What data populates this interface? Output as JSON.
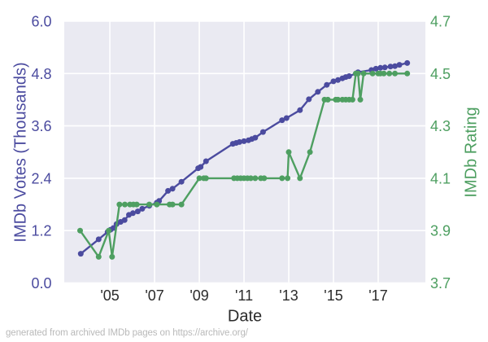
{
  "figure": {
    "bg": "#ffffff",
    "plot_bg": "#eaeaf2",
    "grid_color": "#ffffff",
    "footer": "generated from archived IMDb pages on https://archive.org/",
    "x_tick_color": "#2b2b2b"
  },
  "chart_data": {
    "type": "line",
    "xlabel": "Date",
    "xlim": [
      2002.96,
      2019.11
    ],
    "x_ticks": [
      2005,
      2007,
      2009,
      2011,
      2013,
      2015,
      2017
    ],
    "x_tick_labels": [
      "'05",
      "'07",
      "'09",
      "'11",
      "'13",
      "'15",
      "'17"
    ],
    "grid": true,
    "left_axis": {
      "label": "IMDb Votes (Thousands)",
      "color": "#4b4b9f",
      "ticks": [
        0.0,
        1.2,
        2.4,
        3.6,
        4.8,
        6.0
      ],
      "tick_labels": [
        "0.0",
        "1.2",
        "2.4",
        "3.6",
        "4.8",
        "6.0"
      ],
      "lim": [
        0,
        6
      ]
    },
    "right_axis": {
      "label": "IMDb Rating",
      "color": "#4e9f61",
      "ticks": [
        3.7,
        3.9,
        4.1,
        4.3,
        4.5,
        4.7
      ],
      "tick_labels": [
        "3.7",
        "3.9",
        "4.1",
        "4.3",
        "4.5",
        "4.7"
      ],
      "lim": [
        3.7,
        4.7
      ]
    },
    "series": [
      {
        "name": "IMDb Votes (Thousands)",
        "axis": "left",
        "color": "#4b4b9f",
        "x": [
          2003.7,
          2004.5,
          2004.9,
          2005.03,
          2005.16,
          2005.3,
          2005.48,
          2005.66,
          2005.85,
          2006.03,
          2006.25,
          2006.45,
          2006.76,
          2007.1,
          2007.2,
          2007.6,
          2007.8,
          2008.2,
          2008.95,
          2009.06,
          2009.3,
          2010.5,
          2010.65,
          2010.8,
          2011.0,
          2011.2,
          2011.35,
          2011.5,
          2011.85,
          2012.7,
          2012.9,
          2013.5,
          2013.9,
          2014.3,
          2014.7,
          2015.0,
          2015.2,
          2015.4,
          2015.55,
          2015.7,
          2016.0,
          2016.1,
          2016.7,
          2016.9,
          2017.1,
          2017.3,
          2017.55,
          2017.75,
          2017.95,
          2018.3
        ],
        "y": [
          0.67,
          1.0,
          1.17,
          1.22,
          1.26,
          1.35,
          1.4,
          1.44,
          1.56,
          1.6,
          1.64,
          1.7,
          1.77,
          1.84,
          1.88,
          2.11,
          2.16,
          2.32,
          2.63,
          2.66,
          2.79,
          3.19,
          3.21,
          3.23,
          3.25,
          3.27,
          3.3,
          3.33,
          3.46,
          3.73,
          3.78,
          3.96,
          4.21,
          4.38,
          4.54,
          4.62,
          4.65,
          4.69,
          4.72,
          4.74,
          4.8,
          4.83,
          4.88,
          4.91,
          4.93,
          4.94,
          4.96,
          4.97,
          5.0,
          5.04
        ]
      },
      {
        "name": "IMDb Rating",
        "axis": "right",
        "color": "#4e9f61",
        "x": [
          2003.67,
          2004.5,
          2004.95,
          2005.1,
          2005.43,
          2005.67,
          2005.9,
          2006.05,
          2006.2,
          2006.76,
          2007.1,
          2007.67,
          2007.8,
          2008.2,
          2009.0,
          2009.2,
          2009.3,
          2010.55,
          2010.7,
          2010.85,
          2011.0,
          2011.15,
          2011.3,
          2011.5,
          2011.75,
          2011.9,
          2012.7,
          2012.95,
          2013.0,
          2013.5,
          2013.95,
          2014.6,
          2014.75,
          2015.1,
          2015.2,
          2015.4,
          2015.55,
          2015.7,
          2015.85,
          2016.0,
          2016.1,
          2016.2,
          2016.35,
          2016.75,
          2017.0,
          2017.1,
          2017.25,
          2017.5,
          2017.75,
          2018.3
        ],
        "y": [
          3.9,
          3.8,
          3.9,
          3.8,
          4.0,
          4.0,
          4.0,
          4.0,
          4.0,
          4.0,
          4.0,
          4.0,
          4.0,
          4.0,
          4.1,
          4.1,
          4.1,
          4.1,
          4.1,
          4.1,
          4.1,
          4.1,
          4.1,
          4.1,
          4.1,
          4.1,
          4.1,
          4.1,
          4.2,
          4.1,
          4.2,
          4.4,
          4.4,
          4.4,
          4.4,
          4.4,
          4.4,
          4.4,
          4.4,
          4.5,
          4.5,
          4.4,
          4.5,
          4.5,
          4.5,
          4.5,
          4.5,
          4.5,
          4.5,
          4.5
        ]
      }
    ]
  }
}
